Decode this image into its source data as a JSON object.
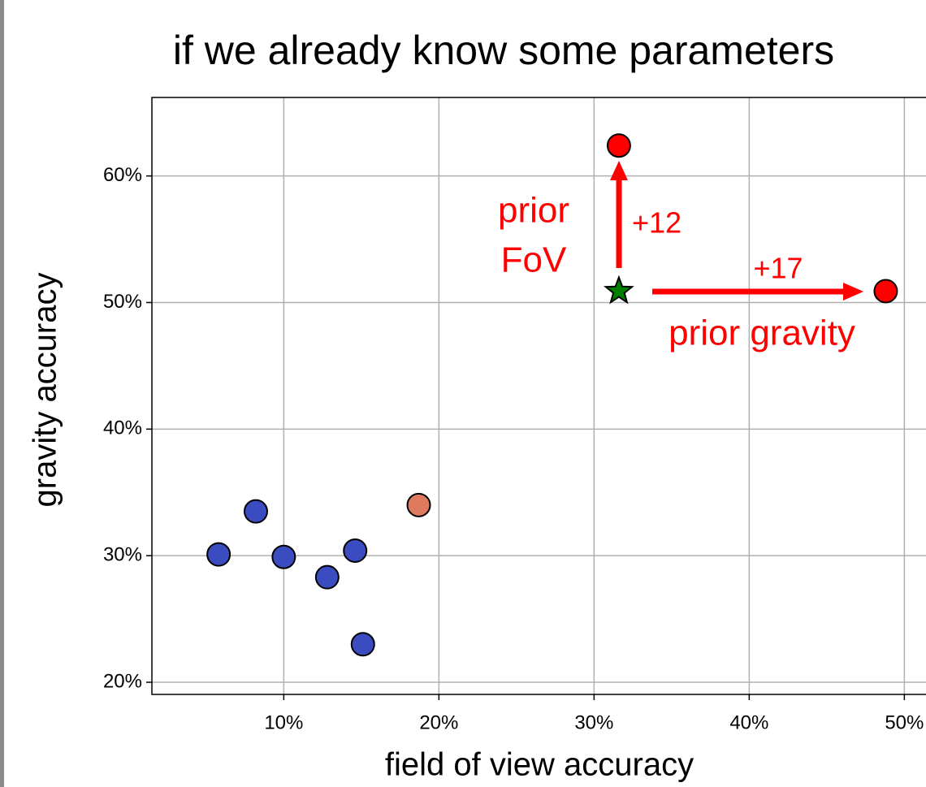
{
  "chart_data": {
    "type": "scatter",
    "title": "if we already know some parameters",
    "xlabel": "field of view accuracy",
    "ylabel": "gravity accuracy",
    "xlim": [
      1.5,
      52.5
    ],
    "ylim": [
      19.04,
      66.2
    ],
    "xticks": [
      {
        "value": 10,
        "label": "10%"
      },
      {
        "value": 20,
        "label": "20%"
      },
      {
        "value": 30,
        "label": "30%"
      },
      {
        "value": 40,
        "label": "40%"
      },
      {
        "value": 50,
        "label": "50%"
      }
    ],
    "yticks": [
      {
        "value": 20,
        "label": "20%"
      },
      {
        "value": 30,
        "label": "30%"
      },
      {
        "value": 40,
        "label": "40%"
      },
      {
        "value": 50,
        "label": "50%"
      },
      {
        "value": 60,
        "label": "60%"
      }
    ],
    "grid": true,
    "series": [
      {
        "color": "#3b4cc0",
        "marker": "circle",
        "x": [
          5.8,
          8.2,
          10.0,
          12.8,
          14.6,
          15.1
        ],
        "values": [
          30.1,
          33.5,
          29.9,
          28.3,
          30.4,
          23.0
        ]
      },
      {
        "color": "#e07a5f",
        "marker": "circle",
        "x": [
          18.7
        ],
        "values": [
          34.0
        ]
      },
      {
        "color": "#008000",
        "marker": "star",
        "x": [
          31.6
        ],
        "values": [
          50.9
        ]
      },
      {
        "color": "#ff0000",
        "marker": "circle",
        "x": [
          31.6,
          48.8
        ],
        "values": [
          62.4,
          50.9
        ]
      }
    ],
    "annotations": {
      "fov_label_1": "prior",
      "fov_label_2": "FoV",
      "fov_gain": "+12",
      "gravity_gain": "+17",
      "gravity_label": "prior gravity"
    }
  }
}
